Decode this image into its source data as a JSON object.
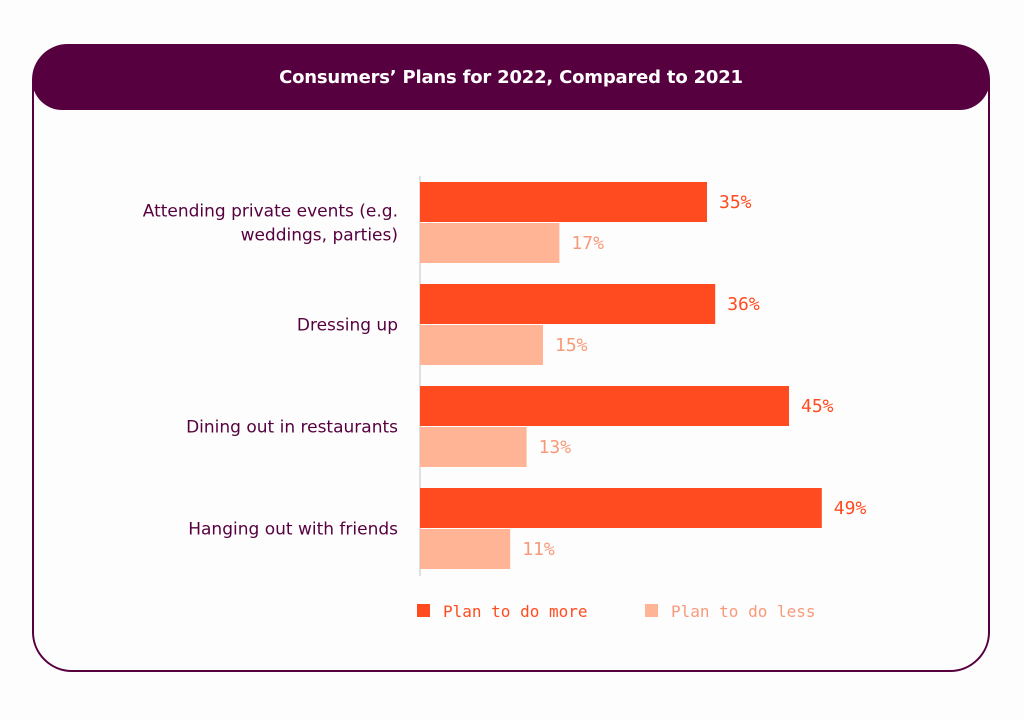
{
  "chart_data": {
    "type": "bar",
    "orientation": "horizontal",
    "title": "Consumers’ Plans for 2022, Compared to 2021",
    "categories": [
      [
        "Attending private events (e.g.",
        "weddings, parties)"
      ],
      [
        "Dressing up"
      ],
      [
        "Dining out in restaurants"
      ],
      [
        "Hanging out with friends"
      ]
    ],
    "series": [
      {
        "name": "Plan to do more",
        "color": "#ff4b1f",
        "values": [
          35,
          36,
          45,
          49
        ],
        "labels": [
          "35%",
          "36%",
          "45%",
          "49%"
        ]
      },
      {
        "name": "Plan to do less",
        "color": "#ffb496",
        "values": [
          17,
          15,
          13,
          11
        ],
        "labels": [
          "17%",
          "15%",
          "13%",
          "11%"
        ]
      }
    ],
    "xlim": [
      0,
      60
    ],
    "grid": false,
    "legend": "bottom"
  },
  "colors": {
    "header_bg": "#56003f",
    "border": "#56003f",
    "category_text": "#56003f",
    "more_label_text": "#ff4b1f",
    "less_label_text": "#f79a7a",
    "axis_line": "#d7d7d7"
  }
}
